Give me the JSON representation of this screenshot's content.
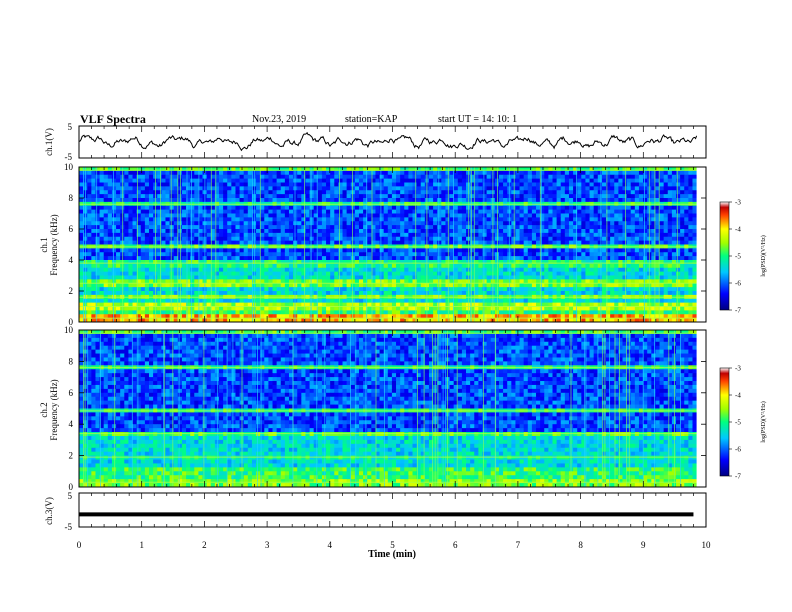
{
  "header": {
    "title": "VLF Spectra",
    "date": "Nov.23, 2019",
    "station": "station=KAP",
    "start": "start  UT =   14: 10: 1"
  },
  "chart_data": [
    {
      "type": "line",
      "panel": "ch1-waveform",
      "ylabel": "ch.1(V)",
      "ylim": [
        -5,
        5
      ],
      "y_ticks": [
        "5",
        "-5"
      ],
      "description_of_values": "noisy waveform fluctuating roughly between -3 and +3 V over 0–9.8 min"
    },
    {
      "type": "heatmap",
      "panel": "ch1-spectrogram",
      "ylabel": "ch.1\nFrequency (kHz)",
      "ylabel_line1": "ch.1",
      "ylabel_line2": "Frequency (kHz)",
      "ylim": [
        0,
        10
      ],
      "y_ticks": [
        "0",
        "2",
        "4",
        "6",
        "8",
        "10"
      ],
      "colorbar": {
        "label": "log(PSD)(V²/Hz)",
        "range": [
          -7,
          -3
        ],
        "ticks": [
          "-3",
          "-4",
          "-5",
          "-6",
          "-7"
        ]
      }
    },
    {
      "type": "heatmap",
      "panel": "ch2-spectrogram",
      "ylabel_line1": "ch.2",
      "ylabel_line2": "Frequency (kHz)",
      "ylim": [
        0,
        10
      ],
      "y_ticks": [
        "0",
        "2",
        "4",
        "6",
        "8",
        "10"
      ],
      "colorbar": {
        "label": "log(PSD)(V²/Hz)",
        "range": [
          -7,
          -3
        ],
        "ticks": [
          "-3",
          "-4",
          "-5",
          "-6",
          "-7"
        ]
      }
    },
    {
      "type": "line",
      "panel": "ch3-waveform",
      "ylabel": "ch.3(V)",
      "ylim": [
        -5,
        5
      ],
      "y_ticks": [
        "5",
        "-5"
      ],
      "x": [
        0,
        9.8
      ],
      "values": [
        -1.3,
        -1.3
      ]
    }
  ],
  "xaxis": {
    "label": "Time  (min)",
    "xlim": [
      0,
      10
    ],
    "ticks": [
      "0",
      "1",
      "2",
      "3",
      "4",
      "5",
      "6",
      "7",
      "8",
      "9",
      "10"
    ]
  }
}
